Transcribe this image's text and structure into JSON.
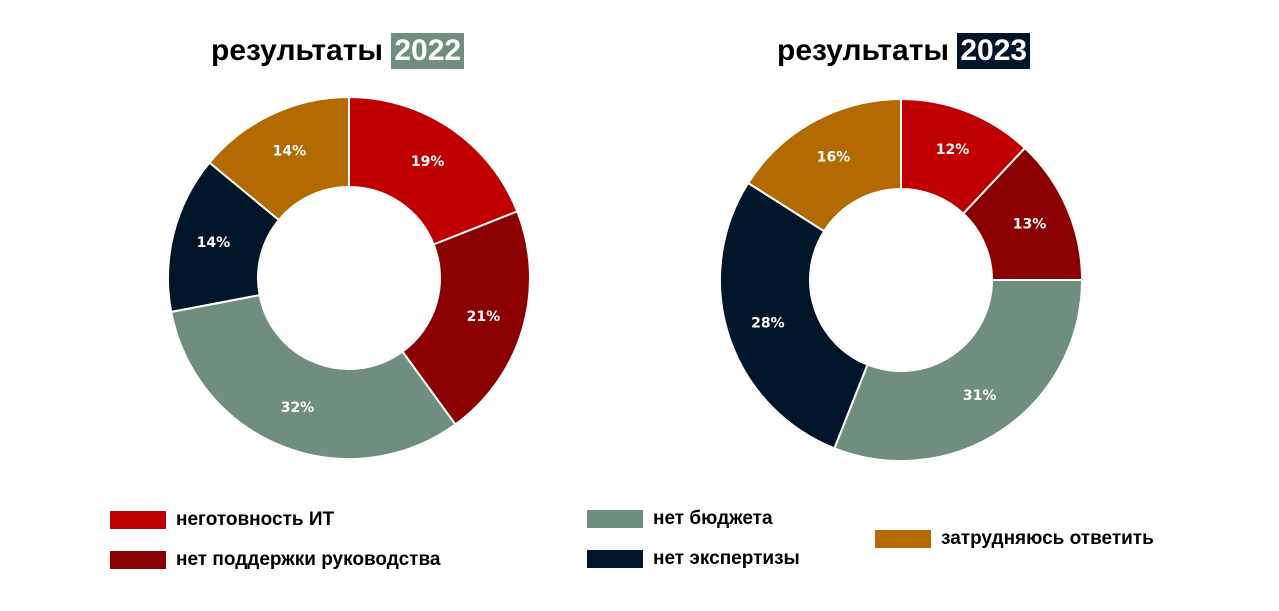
{
  "colors": {
    "it_unready": "#C00000",
    "no_mgmt": "#8B0000",
    "no_budget": "#708E80",
    "no_expertise": "#00142A",
    "hard_to_say": "#B36A00",
    "badge_2022": "#708E80",
    "badge_2023": "#00142A"
  },
  "titles": [
    {
      "prefix": "результаты",
      "year": "2022"
    },
    {
      "prefix": "результаты",
      "year": "2023"
    }
  ],
  "legend": [
    {
      "key": "it_unready",
      "label": "неготовность ИТ"
    },
    {
      "key": "no_mgmt",
      "label": "нет поддержки руководства"
    },
    {
      "key": "no_budget",
      "label": "нет бюджета"
    },
    {
      "key": "no_expertise",
      "label": "нет экспертизы"
    },
    {
      "key": "hard_to_say",
      "label": "затрудняюсь ответить"
    }
  ],
  "chart_data": [
    {
      "type": "pie",
      "title": "результаты 2022",
      "categories": [
        "неготовность ИТ",
        "нет поддержки руководства",
        "нет бюджета",
        "нет экспертизы",
        "затрудняюсь ответить"
      ],
      "values": [
        19,
        21,
        32,
        14,
        14
      ],
      "labels": [
        "19%",
        "21%",
        "32%",
        "14%",
        "14%"
      ],
      "legend_position": "bottom"
    },
    {
      "type": "pie",
      "title": "результаты 2023",
      "categories": [
        "неготовность ИТ",
        "нет поддержки руководства",
        "нет бюджета",
        "нет экспертизы",
        "затрудняюсь ответить"
      ],
      "values": [
        12,
        13,
        31,
        28,
        16
      ],
      "labels": [
        "12%",
        "13%",
        "31%",
        "28%",
        "16%"
      ],
      "legend_position": "bottom"
    }
  ]
}
